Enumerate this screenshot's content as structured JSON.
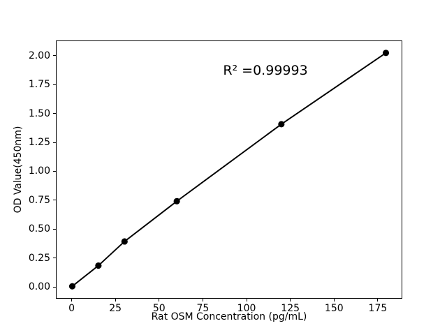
{
  "figure": {
    "background_color": "#ffffff",
    "foreground_color": "#000000"
  },
  "chart_data": {
    "type": "line",
    "title": "",
    "xlabel": "Rat OSM Concentration (pg/mL)",
    "ylabel": "OD Value(450nm)",
    "x": [
      0,
      15,
      30,
      60,
      120,
      180
    ],
    "y": [
      0.0,
      0.18,
      0.39,
      0.74,
      1.41,
      2.03
    ],
    "xlim": [
      -9,
      189
    ],
    "ylim": [
      -0.102,
      2.132
    ],
    "xticks": [
      0,
      25,
      50,
      75,
      100,
      125,
      150,
      175
    ],
    "xtick_labels": [
      "0",
      "25",
      "50",
      "75",
      "100",
      "125",
      "150",
      "175"
    ],
    "yticks": [
      0.0,
      0.25,
      0.5,
      0.75,
      1.0,
      1.25,
      1.5,
      1.75,
      2.0
    ],
    "ytick_labels": [
      "0.00",
      "0.25",
      "0.50",
      "0.75",
      "1.00",
      "1.25",
      "1.50",
      "1.75",
      "2.00"
    ],
    "grid": false,
    "legend": "none",
    "line_color": "#000000",
    "marker_color": "#000000",
    "marker_style": "circle",
    "annotation": {
      "text": "R² =0.99993",
      "x": 111,
      "y": 1.87
    }
  }
}
